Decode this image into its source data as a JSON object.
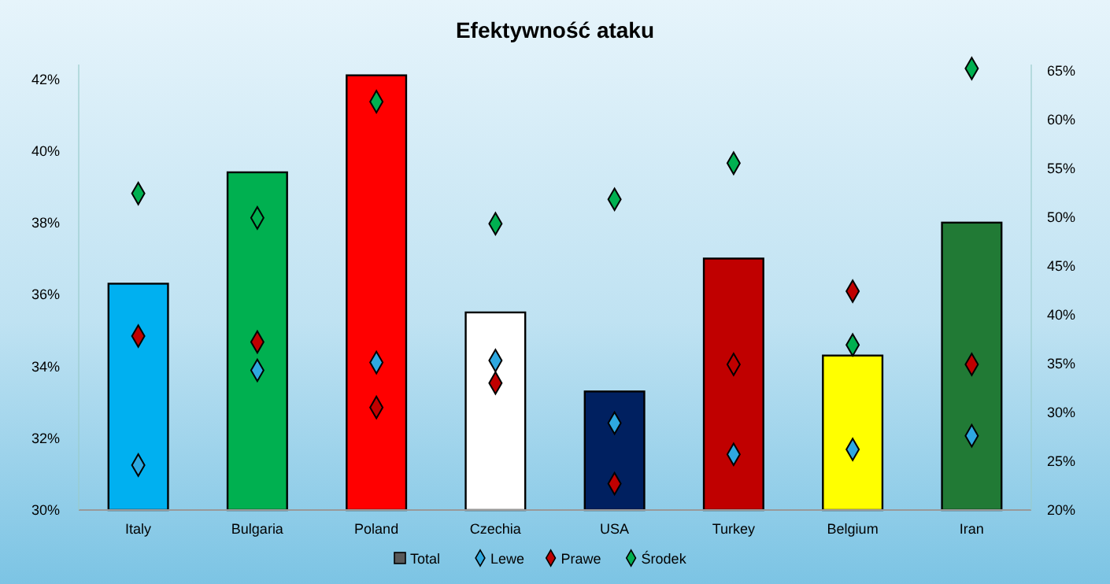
{
  "chart_data": {
    "type": "bar",
    "title": "Efektywność ataku",
    "categories": [
      "Italy",
      "Bulgaria",
      "Poland",
      "Czechia",
      "USA",
      "Turkey",
      "Belgium",
      "Iran"
    ],
    "series": [
      {
        "name": "Total",
        "colors": [
          "#00b0f0",
          "#00b050",
          "#ff0000",
          "#ffffff",
          "#002060",
          "#c00000",
          "#ffff00",
          "#217a35"
        ],
        "values": [
          36.3,
          39.4,
          42.1,
          35.5,
          33.3,
          37.0,
          34.3,
          38.0
        ]
      },
      {
        "name": "Lewe",
        "type": "scatter",
        "axis": "y2",
        "color": "#2ea8e0",
        "x": [
          "Italy",
          "Bulgaria",
          "Poland",
          "Czechia",
          "USA",
          "Turkey",
          "Belgium",
          "Iran"
        ],
        "values": [
          24.6,
          34.3,
          35.1,
          35.3,
          28.9,
          25.7,
          26.2,
          27.6
        ]
      },
      {
        "name": "Prawe",
        "type": "scatter",
        "axis": "y2",
        "color": "#c00000",
        "x": [
          "Italy",
          "Bulgaria",
          "Poland",
          "Czechia",
          "USA",
          "Turkey",
          "Belgium",
          "Iran"
        ],
        "values": [
          37.8,
          37.2,
          30.5,
          33.0,
          22.7,
          34.9,
          42.4,
          34.9
        ]
      },
      {
        "name": "Środek",
        "type": "scatter",
        "axis": "y2",
        "color": "#00b050",
        "x": [
          "Italy",
          "Bulgaria",
          "Poland",
          "Czechia",
          "USA",
          "Turkey",
          "Belgium",
          "Iran"
        ],
        "values": [
          52.4,
          49.9,
          61.8,
          49.3,
          51.8,
          55.5,
          36.9,
          65.2
        ]
      }
    ],
    "ylim": [
      30,
      42.4
    ],
    "yticks": [
      {
        "value": 30,
        "label": "30%"
      },
      {
        "value": 32,
        "label": "32%"
      },
      {
        "value": 34,
        "label": "34%"
      },
      {
        "value": 36,
        "label": "36%"
      },
      {
        "value": 38,
        "label": "38%"
      },
      {
        "value": 40,
        "label": "40%"
      },
      {
        "value": 42,
        "label": "42%"
      }
    ],
    "y2lim": [
      20,
      65.6
    ],
    "y2ticks": [
      {
        "value": 20,
        "label": "20%"
      },
      {
        "value": 25,
        "label": "25%"
      },
      {
        "value": 30,
        "label": "30%"
      },
      {
        "value": 35,
        "label": "35%"
      },
      {
        "value": 40,
        "label": "40%"
      },
      {
        "value": 45,
        "label": "45%"
      },
      {
        "value": 50,
        "label": "50%"
      },
      {
        "value": 55,
        "label": "55%"
      },
      {
        "value": 60,
        "label": "60%"
      },
      {
        "value": 65,
        "label": "65%"
      }
    ],
    "marker": "diamond",
    "legend": "bottom",
    "grid": false
  }
}
